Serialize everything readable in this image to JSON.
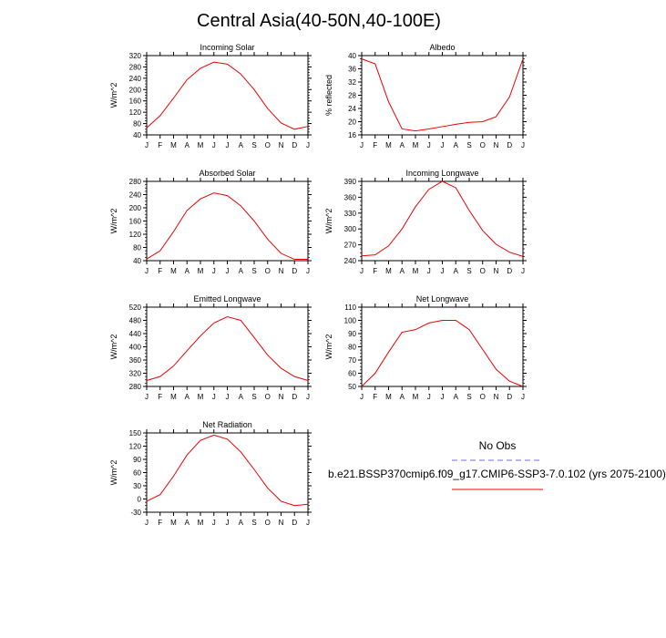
{
  "title": "Central Asia(40-50N,40-100E)",
  "legend": {
    "obs_label": "No Obs",
    "case_label": "b.e21.BSSP370cmip6.f09_g17.CMIP6-SSP3-7.0.102 (yrs 2075-2100)",
    "obs_color": "#6f6fef",
    "case_color": "#ef0000"
  },
  "chart_data": [
    {
      "type": "line",
      "title": "Incoming Solar",
      "ylabel": "W/m^2",
      "categories": [
        "J",
        "F",
        "M",
        "A",
        "M",
        "J",
        "J",
        "A",
        "S",
        "O",
        "N",
        "D",
        "J"
      ],
      "ylim": [
        40,
        320
      ],
      "yticks": [
        40,
        80,
        120,
        160,
        200,
        240,
        280,
        320
      ],
      "series": [
        {
          "values": [
            65,
            108,
            170,
            235,
            275,
            297,
            290,
            255,
            200,
            133,
            82,
            60,
            70
          ]
        }
      ]
    },
    {
      "type": "line",
      "title": "Albedo",
      "ylabel": "% reflected",
      "categories": [
        "J",
        "F",
        "M",
        "A",
        "M",
        "J",
        "J",
        "A",
        "S",
        "O",
        "N",
        "D",
        "J"
      ],
      "ylim": [
        16,
        40
      ],
      "yticks": [
        16,
        20,
        24,
        28,
        32,
        36,
        40
      ],
      "series": [
        {
          "values": [
            39.0,
            37.5,
            26.0,
            17.8,
            17.2,
            17.8,
            18.5,
            19.2,
            19.8,
            20.0,
            21.5,
            27.5,
            39.0
          ]
        }
      ]
    },
    {
      "type": "line",
      "title": "Absorbed Solar",
      "ylabel": "W/m^2",
      "categories": [
        "J",
        "F",
        "M",
        "A",
        "M",
        "J",
        "J",
        "A",
        "S",
        "O",
        "N",
        "D",
        "J"
      ],
      "ylim": [
        40,
        280
      ],
      "yticks": [
        40,
        80,
        120,
        160,
        200,
        240,
        280
      ],
      "series": [
        {
          "values": [
            45,
            70,
            128,
            192,
            227,
            245,
            237,
            206,
            160,
            105,
            62,
            44,
            44
          ]
        }
      ]
    },
    {
      "type": "line",
      "title": "Incoming Longwave",
      "ylabel": "W/m^2",
      "categories": [
        "J",
        "F",
        "M",
        "A",
        "M",
        "J",
        "J",
        "A",
        "S",
        "O",
        "N",
        "D",
        "J"
      ],
      "ylim": [
        240,
        390
      ],
      "yticks": [
        240,
        270,
        300,
        330,
        360,
        390
      ],
      "series": [
        {
          "values": [
            249,
            251,
            268,
            300,
            342,
            375,
            390,
            378,
            335,
            297,
            271,
            256,
            248
          ]
        }
      ]
    },
    {
      "type": "line",
      "title": "Emitted Longwave",
      "ylabel": "W/m^2",
      "categories": [
        "J",
        "F",
        "M",
        "A",
        "M",
        "J",
        "J",
        "A",
        "S",
        "O",
        "N",
        "D",
        "J"
      ],
      "ylim": [
        280,
        520
      ],
      "yticks": [
        280,
        320,
        360,
        400,
        440,
        480,
        520
      ],
      "series": [
        {
          "values": [
            298,
            310,
            342,
            388,
            433,
            472,
            491,
            480,
            428,
            375,
            335,
            310,
            298
          ]
        }
      ]
    },
    {
      "type": "line",
      "title": "Net Longwave",
      "ylabel": "W/m^2",
      "categories": [
        "J",
        "F",
        "M",
        "A",
        "M",
        "J",
        "J",
        "A",
        "S",
        "O",
        "N",
        "D",
        "J"
      ],
      "ylim": [
        50,
        110
      ],
      "yticks": [
        50,
        60,
        70,
        80,
        90,
        100,
        110
      ],
      "series": [
        {
          "values": [
            50,
            60,
            76,
            91,
            93,
            98,
            100,
            100,
            93,
            78,
            63,
            54,
            50
          ]
        }
      ]
    },
    {
      "type": "line",
      "title": "Net Radiation",
      "ylabel": "W/m^2",
      "categories": [
        "J",
        "F",
        "M",
        "A",
        "M",
        "J",
        "J",
        "A",
        "S",
        "O",
        "N",
        "D",
        "J"
      ],
      "ylim": [
        -30,
        150
      ],
      "yticks": [
        -30,
        0,
        30,
        60,
        90,
        120,
        150
      ],
      "series": [
        {
          "values": [
            -5,
            10,
            52,
            100,
            133,
            145,
            136,
            107,
            67,
            25,
            -5,
            -15,
            -12
          ]
        }
      ]
    }
  ]
}
